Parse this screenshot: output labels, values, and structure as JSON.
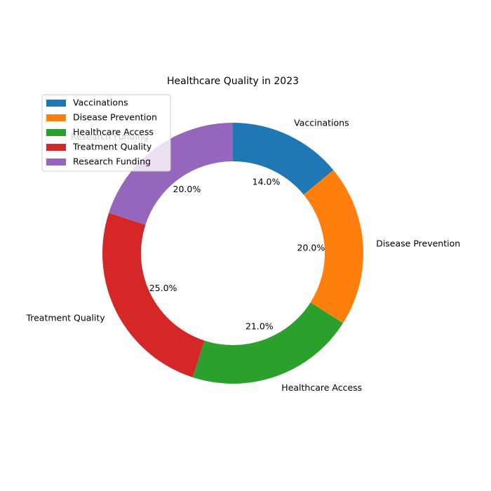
{
  "chart_data": {
    "type": "pie",
    "donut": true,
    "title": "Healthcare Quality in 2023",
    "start_angle_deg": 90,
    "direction": "clockwise",
    "legend_position": "upper-left",
    "slices": [
      {
        "label": "Vaccinations",
        "value": 14.0,
        "pct_label": "14.0%",
        "color": "#1f77b4"
      },
      {
        "label": "Disease Prevention",
        "value": 20.0,
        "pct_label": "20.0%",
        "color": "#ff7f0e"
      },
      {
        "label": "Healthcare Access",
        "value": 21.0,
        "pct_label": "21.0%",
        "color": "#2ca02c"
      },
      {
        "label": "Treatment Quality",
        "value": 25.0,
        "pct_label": "25.0%",
        "color": "#d62728"
      },
      {
        "label": "Research Funding",
        "value": 20.0,
        "pct_label": "20.0%",
        "color": "#9467bd"
      }
    ]
  }
}
